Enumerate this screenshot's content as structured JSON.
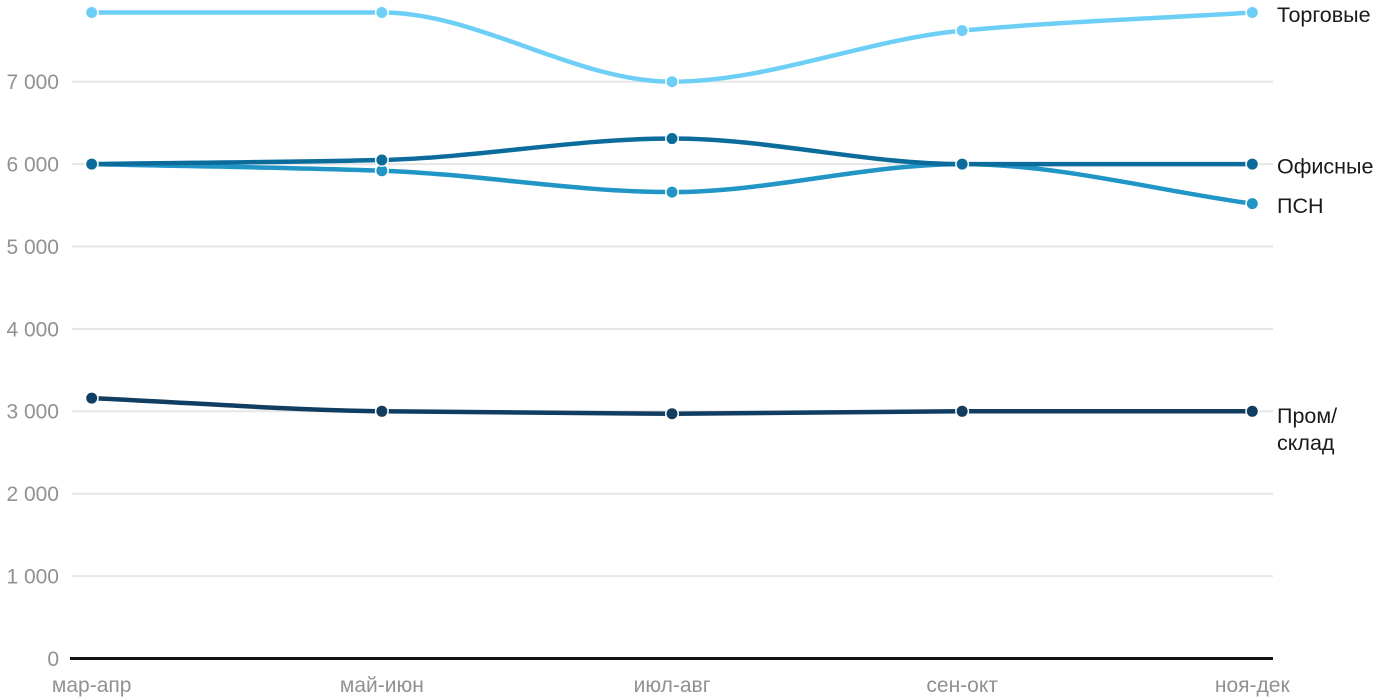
{
  "chart_data": {
    "type": "line",
    "title": "",
    "categories": [
      "мар-апр",
      "май-июн",
      "июл-авг",
      "сен-окт",
      "ноя-дек"
    ],
    "series": [
      {
        "id": "torgovye",
        "name": "Торговые",
        "color": "#6ECFF6",
        "values": [
          7840,
          7840,
          7000,
          7620,
          7840
        ],
        "label_lines": [
          "Торговые"
        ]
      },
      {
        "id": "prom-sklad",
        "name": "Пром/склад",
        "color": "#113D61",
        "values": [
          3160,
          3000,
          2970,
          3000,
          3000
        ],
        "label_lines": [
          "Пром/",
          "склад"
        ]
      },
      {
        "id": "psn",
        "name": "ПСН",
        "color": "#2095C6",
        "values": [
          6000,
          5920,
          5660,
          6000,
          5520
        ],
        "label_lines": [
          "ПСН"
        ]
      },
      {
        "id": "ofisnye",
        "name": "Офисные",
        "color": "#0B6C9B",
        "values": [
          6000,
          6050,
          6310,
          6000,
          6000
        ],
        "label_lines": [
          "Офисные"
        ]
      }
    ],
    "yticks": [
      0,
      1000,
      2000,
      3000,
      4000,
      5000,
      6000,
      7000
    ],
    "ytick_labels": [
      "0",
      "1 000",
      "2 000",
      "3 000",
      "4 000",
      "5 000",
      "6 000",
      "7 000"
    ],
    "ylim": [
      0,
      7900
    ],
    "grid": "horizontal",
    "legend_position": "direct-labels-right"
  },
  "colors": {
    "background": "#FFFFFF",
    "gridline": "#E6E6E6",
    "axis_line": "#141414",
    "axis_label": "#8F9194",
    "series_label": "#1A1A1A"
  }
}
